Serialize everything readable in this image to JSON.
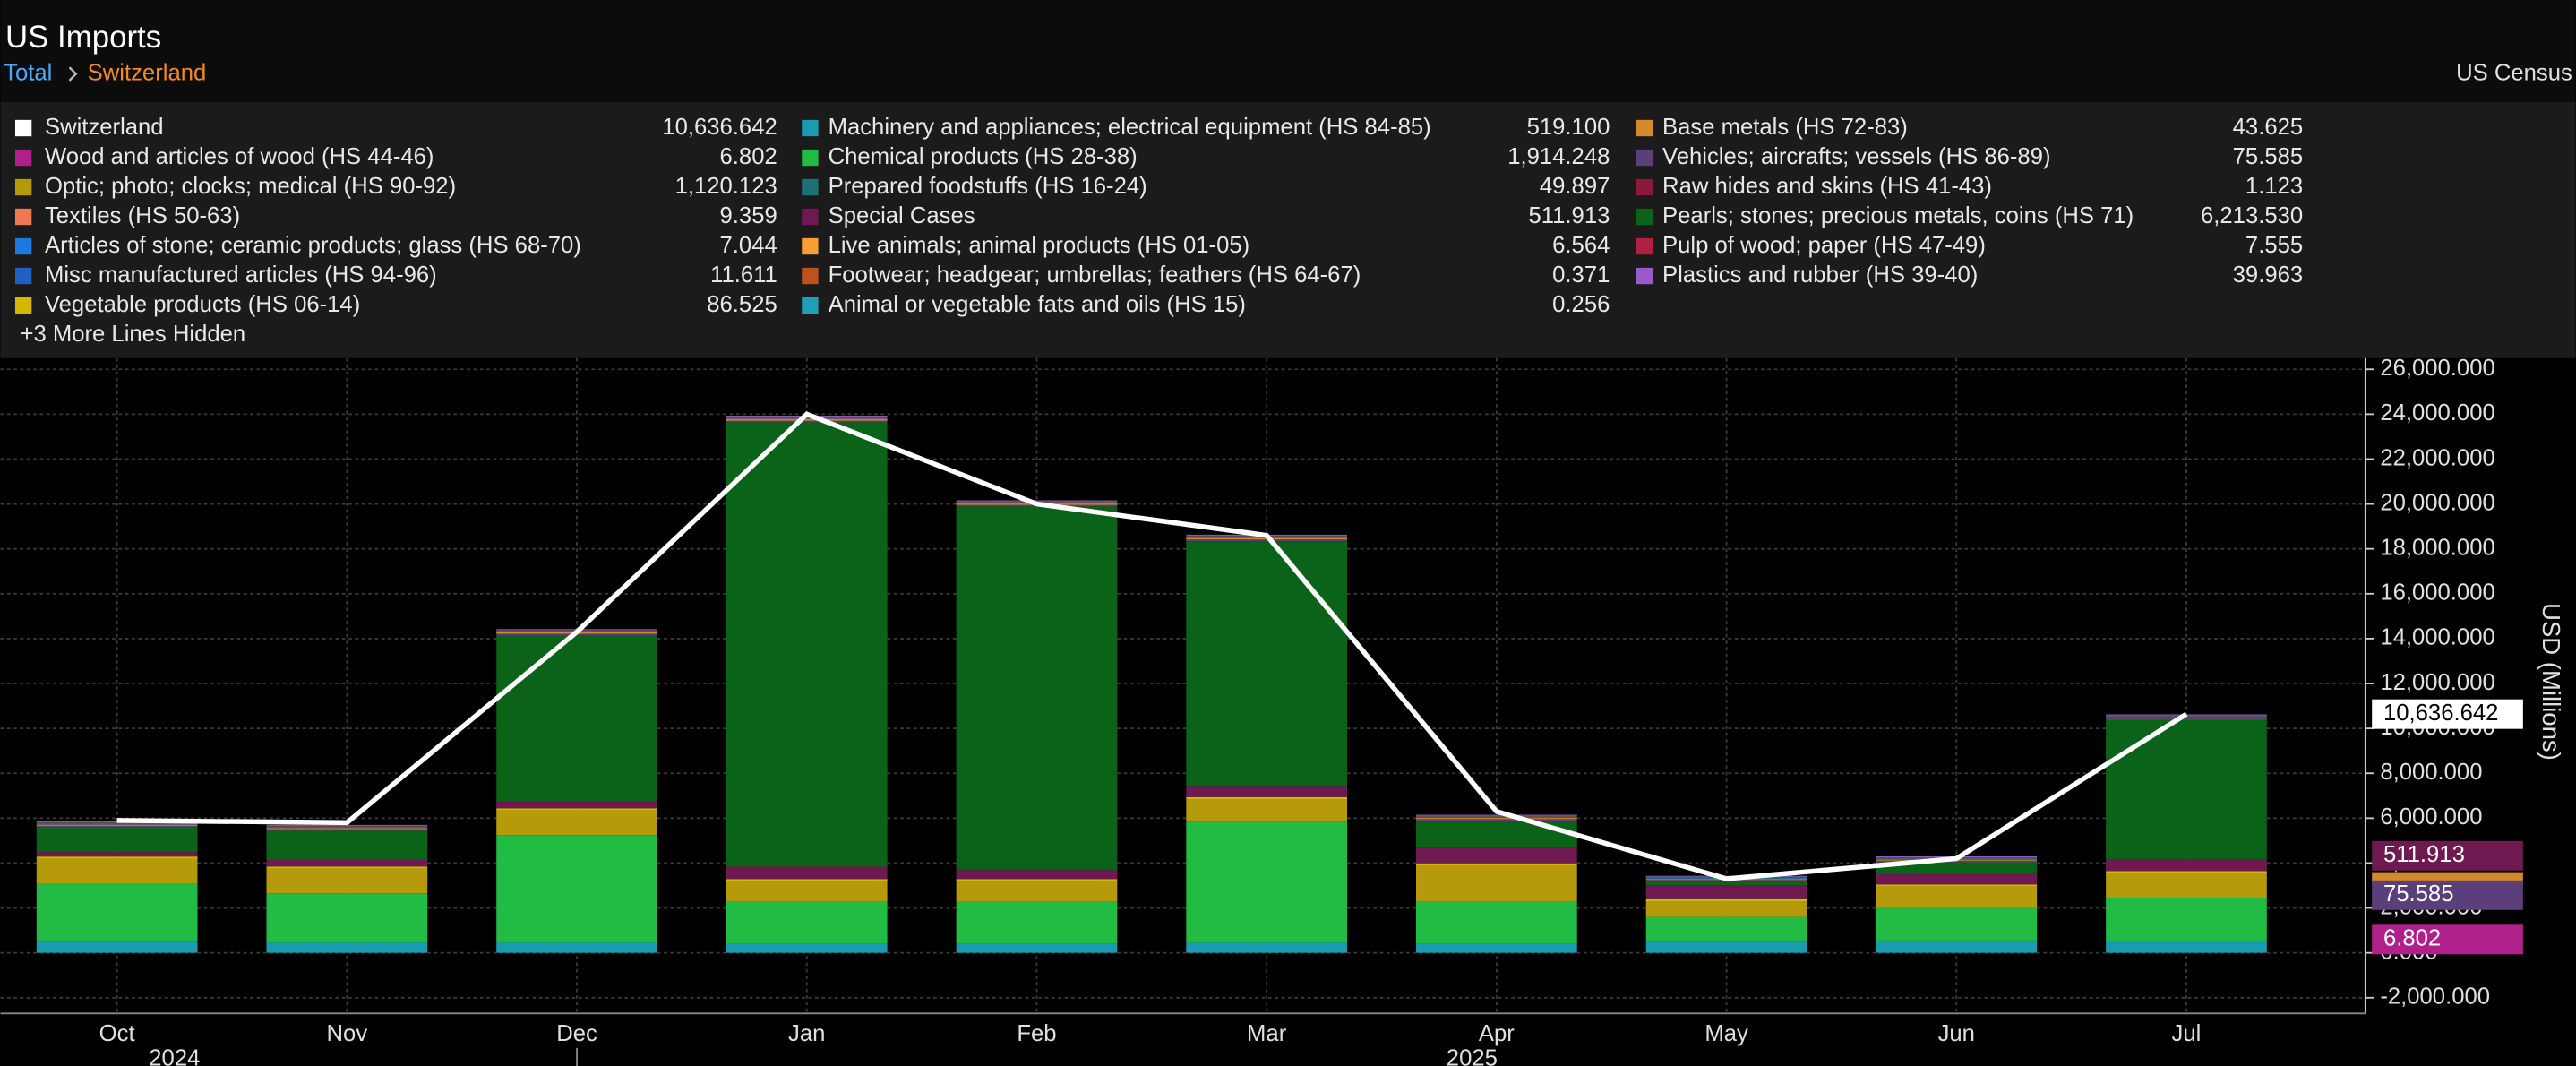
{
  "chart_data": {
    "type": "bar",
    "title": "US Imports",
    "breadcrumb": [
      "Total",
      "Switzerland"
    ],
    "source": "US Census",
    "hidden_note": "+3 More Lines Hidden",
    "y_label": "USD (Millions)",
    "categories": [
      "Oct",
      "Nov",
      "Dec",
      "Jan",
      "Feb",
      "Mar",
      "Apr",
      "May",
      "Jun",
      "Jul"
    ],
    "years": [
      {
        "label": "2024",
        "category": 0
      },
      {
        "label": "2025",
        "category": 6
      }
    ],
    "ylim": [
      -2700,
      26500
    ],
    "yticks": [
      {
        "value": -2000,
        "label": "-2,000.000"
      },
      {
        "value": 0,
        "label": "0.000"
      },
      {
        "value": 2000,
        "label": "2,000.000"
      },
      {
        "value": 4000,
        "label": "4,000.000"
      },
      {
        "value": 6000,
        "label": "6,000.000"
      },
      {
        "value": 8000,
        "label": "8,000.000"
      },
      {
        "value": 10000,
        "label": "10,000.000"
      },
      {
        "value": 12000,
        "label": "12,000.000"
      },
      {
        "value": 14000,
        "label": "14,000.000"
      },
      {
        "value": 16000,
        "label": "16,000.000"
      },
      {
        "value": 18000,
        "label": "18,000.000"
      },
      {
        "value": 20000,
        "label": "20,000.000"
      },
      {
        "value": 22000,
        "label": "22,000.000"
      },
      {
        "value": 24000,
        "label": "24,000.000"
      },
      {
        "value": 26000,
        "label": "26,000.000"
      }
    ],
    "grid": true,
    "series": [
      {
        "name": "Switzerland",
        "type": "line",
        "color": "#ffffff",
        "latest_label": "10,636.642",
        "values": [
          5900,
          5800,
          14300,
          24000,
          20000,
          18600,
          6300,
          3300,
          4200,
          10636.642
        ]
      },
      {
        "name": "Machinery and appliances; electrical equipment (HS 84-85)",
        "color": "#1a9bb0",
        "latest_label": "519.100",
        "values": [
          500,
          450,
          450,
          400,
          400,
          450,
          400,
          500,
          550,
          519.1
        ]
      },
      {
        "name": "Base metals (HS 72-83)",
        "color": "#d4892a",
        "latest_label": "43.625",
        "values": [
          50,
          50,
          60,
          80,
          60,
          70,
          50,
          40,
          45,
          43.625
        ]
      },
      {
        "name": "Wood and articles of wood (HS 44-46)",
        "color": "#b0208a",
        "latest_label": "6.802",
        "values": [
          7,
          7,
          7,
          7,
          7,
          7,
          7,
          7,
          7,
          6.802
        ]
      },
      {
        "name": "Chemical products (HS 28-38)",
        "color": "#22bb44",
        "latest_label": "1,914.248",
        "values": [
          2600,
          2200,
          4800,
          1900,
          1900,
          5400,
          1900,
          1100,
          1500,
          1914.248
        ]
      },
      {
        "name": "Vehicles; aircrafts; vessels (HS 86-89)",
        "color": "#5a3f7a",
        "latest_label": "75.585",
        "values": [
          70,
          70,
          80,
          70,
          70,
          80,
          70,
          60,
          70,
          75.585
        ]
      },
      {
        "name": "Optic; photo; clocks; medical (HS 90-92)",
        "color": "#b59a0c",
        "latest_label": "1,120.123",
        "values": [
          1100,
          1100,
          1100,
          900,
          900,
          1000,
          1600,
          700,
          900,
          1120.123
        ]
      },
      {
        "name": "Prepared foodstuffs (HS 16-24)",
        "color": "#1f6f78",
        "latest_label": "49.897",
        "values": [
          50,
          50,
          50,
          50,
          50,
          50,
          50,
          50,
          50,
          49.897
        ]
      },
      {
        "name": "Raw hides and skins (HS 41-43)",
        "color": "#8a1a3a",
        "latest_label": "1.123",
        "values": [
          1,
          1,
          1,
          1,
          1,
          1,
          1,
          1,
          1,
          1.123
        ]
      },
      {
        "name": "Textiles (HS 50-63)",
        "color": "#f07850",
        "latest_label": "9.359",
        "values": [
          9,
          9,
          9,
          9,
          9,
          9,
          9,
          9,
          9,
          9.359
        ]
      },
      {
        "name": "Special Cases",
        "color": "#6e1a50",
        "latest_label": "511.913",
        "values": [
          200,
          300,
          300,
          550,
          400,
          500,
          700,
          600,
          500,
          511.913
        ]
      },
      {
        "name": "Pearls; stones; precious metals, coins (HS 71)",
        "color": "#0a6318",
        "latest_label": "6,213.530",
        "values": [
          1100,
          1300,
          7400,
          19800,
          16200,
          10900,
          1200,
          200,
          500,
          6213.53
        ]
      },
      {
        "name": "Articles of stone; ceramic products; glass (HS 68-70)",
        "color": "#1a7ae0",
        "latest_label": "7.044",
        "values": [
          7,
          7,
          7,
          7,
          7,
          7,
          7,
          7,
          7,
          7.044
        ]
      },
      {
        "name": "Live animals; animal products (HS 01-05)",
        "color": "#f5a030",
        "latest_label": "6.564",
        "values": [
          7,
          7,
          7,
          7,
          7,
          7,
          7,
          7,
          7,
          6.564
        ]
      },
      {
        "name": "Pulp of wood; paper (HS 47-49)",
        "color": "#b02040",
        "latest_label": "7.555",
        "values": [
          8,
          8,
          8,
          8,
          8,
          8,
          8,
          8,
          8,
          7.555
        ]
      },
      {
        "name": "Misc manufactured articles (HS 94-96)",
        "color": "#2060c0",
        "latest_label": "11.611",
        "values": [
          12,
          12,
          12,
          12,
          12,
          12,
          12,
          12,
          12,
          11.611
        ]
      },
      {
        "name": "Footwear; headgear; umbrellas; feathers (HS 64-67)",
        "color": "#c05020",
        "latest_label": "0.371",
        "values": [
          0.4,
          0.4,
          0.4,
          0.4,
          0.4,
          0.4,
          0.4,
          0.4,
          0.4,
          0.371
        ]
      },
      {
        "name": "Plastics and rubber (HS 39-40)",
        "color": "#9a5acc",
        "latest_label": "39.963",
        "values": [
          40,
          40,
          40,
          40,
          40,
          40,
          40,
          40,
          40,
          39.963
        ]
      },
      {
        "name": "Vegetable products (HS 06-14)",
        "color": "#d4b800",
        "latest_label": "86.525",
        "values": [
          90,
          90,
          90,
          90,
          90,
          90,
          90,
          90,
          90,
          86.525
        ]
      },
      {
        "name": "Animal or vegetable fats and oils (HS 15)",
        "color": "#20a0b8",
        "latest_label": "0.256",
        "values": [
          0.3,
          0.3,
          0.3,
          0.3,
          0.3,
          0.3,
          0.3,
          0.3,
          0.3,
          0.256
        ]
      }
    ]
  }
}
